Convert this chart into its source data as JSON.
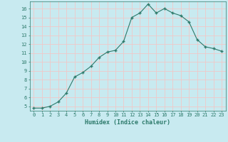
{
  "x": [
    0,
    1,
    2,
    3,
    4,
    5,
    6,
    7,
    8,
    9,
    10,
    11,
    12,
    13,
    14,
    15,
    16,
    17,
    18,
    19,
    20,
    21,
    22,
    23
  ],
  "y": [
    4.8,
    4.8,
    5.0,
    5.5,
    6.5,
    8.3,
    8.8,
    9.5,
    10.5,
    11.1,
    11.3,
    12.3,
    15.0,
    15.5,
    16.5,
    15.5,
    16.0,
    15.5,
    15.2,
    14.5,
    12.5,
    11.7,
    11.5,
    11.2
  ],
  "xlabel": "Humidex (Indice chaleur)",
  "xlim": [
    -0.5,
    23.5
  ],
  "ylim": [
    4.5,
    16.8
  ],
  "yticks": [
    5,
    6,
    7,
    8,
    9,
    10,
    11,
    12,
    13,
    14,
    15,
    16
  ],
  "xticks": [
    0,
    1,
    2,
    3,
    4,
    5,
    6,
    7,
    8,
    9,
    10,
    11,
    12,
    13,
    14,
    15,
    16,
    17,
    18,
    19,
    20,
    21,
    22,
    23
  ],
  "line_color": "#2d7a6b",
  "bg_color": "#c8eaf0",
  "grid_color": "#f0c8c8",
  "label_color": "#2d7a6b",
  "tick_color": "#2d7a6b"
}
